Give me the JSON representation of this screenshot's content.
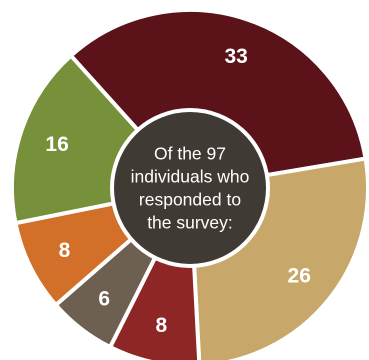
{
  "chart_data": {
    "type": "pie",
    "style": "donut",
    "center_text": [
      "Of the 97",
      "individuals who",
      "responded to",
      "the survey:"
    ],
    "slices": [
      {
        "value": 33,
        "label": "33",
        "color": "#5b1219"
      },
      {
        "value": 26,
        "label": "26",
        "color": "#c8a86a"
      },
      {
        "value": 8,
        "label": "8",
        "color": "#8f2626"
      },
      {
        "value": 6,
        "label": "6",
        "color": "#6e6050"
      },
      {
        "value": 8,
        "label": "8",
        "color": "#d2702a"
      },
      {
        "value": 16,
        "label": "16",
        "color": "#77903a"
      }
    ],
    "center_color": "#3f3a33",
    "separator_color": "#ffffff"
  }
}
